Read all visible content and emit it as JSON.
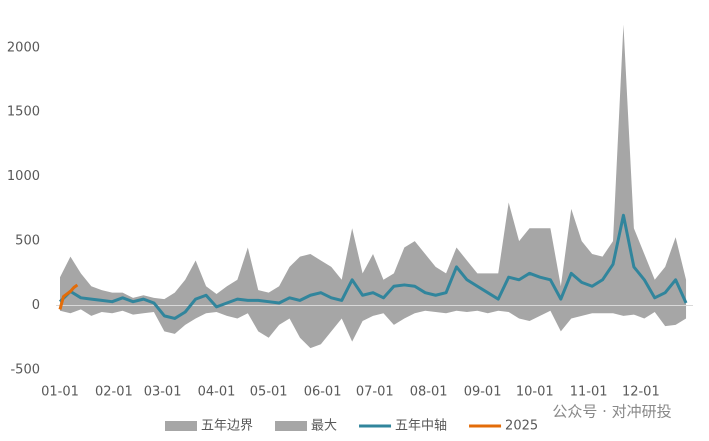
{
  "chart_data": {
    "type": "line",
    "watermark": "公众号 · 对冲研投",
    "ylim": [
      -500,
      2200
    ],
    "yticks": [
      -500,
      0,
      500,
      1000,
      1500,
      2000
    ],
    "xlim": [
      1,
      365
    ],
    "xticks": [
      {
        "value": 1,
        "label": "01-01"
      },
      {
        "value": 32,
        "label": "02-01"
      },
      {
        "value": 60,
        "label": "03-01"
      },
      {
        "value": 91,
        "label": "04-01"
      },
      {
        "value": 121,
        "label": "05-01"
      },
      {
        "value": 152,
        "label": "06-01"
      },
      {
        "value": 182,
        "label": "07-01"
      },
      {
        "value": 213,
        "label": "08-01"
      },
      {
        "value": 244,
        "label": "09-01"
      },
      {
        "value": 274,
        "label": "10-01"
      },
      {
        "value": 305,
        "label": "11-01"
      },
      {
        "value": 335,
        "label": "12-01"
      }
    ],
    "legend": "bottom",
    "series": [
      {
        "name": "五年边界",
        "kind": "area",
        "color": "#a6a6a6",
        "x": [
          1,
          7,
          13,
          19,
          25,
          31,
          37,
          43,
          49,
          55,
          61,
          67,
          73,
          79,
          85,
          91,
          97,
          103,
          109,
          115,
          121,
          127,
          133,
          139,
          145,
          151,
          157,
          163,
          169,
          175,
          181,
          187,
          193,
          199,
          205,
          211,
          217,
          223,
          229,
          235,
          241,
          247,
          253,
          259,
          265,
          271,
          277,
          283,
          289,
          295,
          301,
          307,
          313,
          319,
          325,
          331,
          337,
          343,
          349,
          355,
          361
        ],
        "values": [
          -40,
          -60,
          -30,
          -80,
          -50,
          -60,
          -40,
          -70,
          -60,
          -50,
          -200,
          -220,
          -150,
          -100,
          -60,
          -50,
          -80,
          -100,
          -60,
          -200,
          -250,
          -150,
          -100,
          -250,
          -330,
          -300,
          -200,
          -100,
          -280,
          -120,
          -80,
          -60,
          -150,
          -100,
          -60,
          -40,
          -50,
          -60,
          -40,
          -50,
          -40,
          -60,
          -40,
          -50,
          -100,
          -120,
          -80,
          -40,
          -200,
          -100,
          -80,
          -60,
          -60,
          -60,
          -80,
          -70,
          -100,
          -50,
          -160,
          -150,
          -100
        ]
      },
      {
        "name": "最大",
        "kind": "area",
        "color": "#a6a6a6",
        "x": [
          1,
          7,
          13,
          19,
          25,
          31,
          37,
          43,
          49,
          55,
          61,
          67,
          73,
          79,
          85,
          91,
          97,
          103,
          109,
          115,
          121,
          127,
          133,
          139,
          145,
          151,
          157,
          163,
          169,
          175,
          181,
          187,
          193,
          199,
          205,
          211,
          217,
          223,
          229,
          235,
          241,
          247,
          253,
          259,
          265,
          271,
          277,
          283,
          289,
          295,
          301,
          307,
          313,
          319,
          325,
          331,
          337,
          343,
          349,
          355,
          361
        ],
        "values": [
          220,
          380,
          250,
          150,
          120,
          100,
          100,
          60,
          80,
          60,
          50,
          100,
          200,
          350,
          150,
          90,
          150,
          200,
          450,
          120,
          100,
          150,
          300,
          380,
          400,
          350,
          300,
          200,
          600,
          250,
          400,
          200,
          250,
          450,
          500,
          400,
          300,
          250,
          450,
          350,
          250,
          250,
          250,
          800,
          500,
          600,
          600,
          600,
          150,
          750,
          500,
          400,
          380,
          500,
          2180,
          600,
          400,
          200,
          300,
          530,
          200
        ]
      },
      {
        "name": "五年中轴",
        "kind": "line",
        "color": "#31859c",
        "x": [
          1,
          7,
          13,
          19,
          25,
          31,
          37,
          43,
          49,
          55,
          61,
          67,
          73,
          79,
          85,
          91,
          97,
          103,
          109,
          115,
          121,
          127,
          133,
          139,
          145,
          151,
          157,
          163,
          169,
          175,
          181,
          187,
          193,
          199,
          205,
          211,
          217,
          223,
          229,
          235,
          241,
          247,
          253,
          259,
          265,
          271,
          277,
          283,
          289,
          295,
          301,
          307,
          313,
          319,
          325,
          331,
          337,
          343,
          349,
          355,
          361
        ],
        "values": [
          30,
          110,
          60,
          50,
          40,
          30,
          60,
          30,
          50,
          20,
          -80,
          -100,
          -50,
          50,
          80,
          -10,
          20,
          50,
          40,
          40,
          30,
          20,
          60,
          40,
          80,
          100,
          60,
          40,
          200,
          80,
          100,
          60,
          150,
          160,
          150,
          100,
          80,
          100,
          300,
          200,
          150,
          100,
          50,
          220,
          200,
          250,
          220,
          200,
          50,
          250,
          180,
          150,
          200,
          320,
          700,
          300,
          200,
          60,
          100,
          200,
          20
        ]
      },
      {
        "name": "2025",
        "kind": "line",
        "color": "#e36c09",
        "x": [
          1,
          3,
          5,
          7,
          9,
          11
        ],
        "values": [
          -30,
          70,
          90,
          110,
          140,
          160
        ]
      }
    ]
  }
}
